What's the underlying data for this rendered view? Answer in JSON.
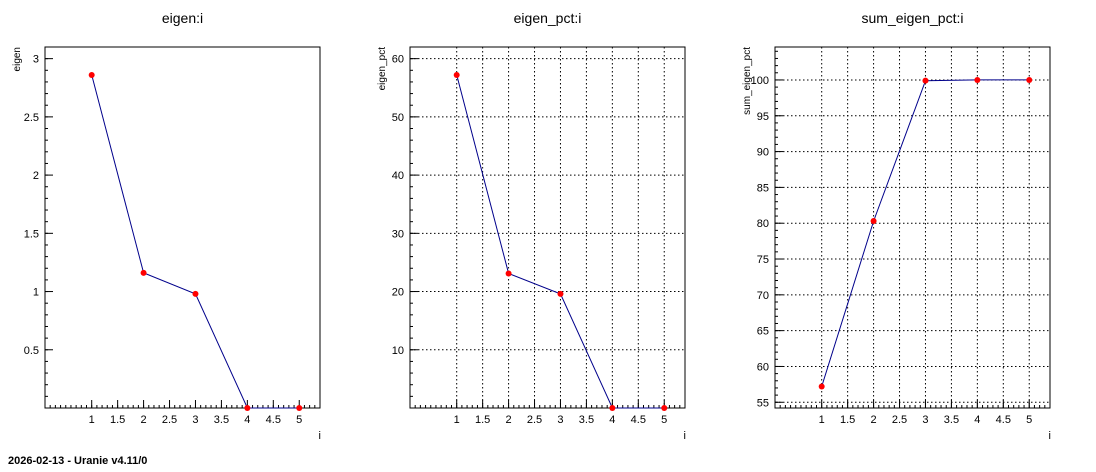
{
  "footer_text": "2026-02-13 - Uranie v4.11/0",
  "colors": {
    "line": "#00008b",
    "marker": "#ff0000",
    "grid": "#000000",
    "axis": "#000000"
  },
  "chart_data": [
    {
      "type": "line",
      "title": "eigen:i",
      "xlabel": "i",
      "ylabel": "eigen",
      "grid": false,
      "xlim": [
        0.1,
        5.4
      ],
      "ylim": [
        0.0,
        3.1
      ],
      "xticks": [
        1,
        1.5,
        2,
        2.5,
        3,
        3.5,
        4,
        4.5,
        5
      ],
      "xtick_labels": [
        "1",
        "1.5",
        "2",
        "2.5",
        "3",
        "3.5",
        "4",
        "4.5",
        "5"
      ],
      "yticks": [
        0.5,
        1,
        1.5,
        2,
        2.5,
        3
      ],
      "ytick_labels": [
        "0.5",
        "1",
        "1.5",
        "2",
        "2.5",
        "3"
      ],
      "x": [
        1,
        2,
        3,
        4,
        5
      ],
      "y": [
        2.86,
        1.16,
        0.98,
        0.0,
        0.0
      ]
    },
    {
      "type": "line",
      "title": "eigen_pct:i",
      "xlabel": "i",
      "ylabel": "eigen_pct",
      "grid": true,
      "xlim": [
        0.1,
        5.4
      ],
      "ylim": [
        0.0,
        62.0
      ],
      "xticks": [
        1,
        1.5,
        2,
        2.5,
        3,
        3.5,
        4,
        4.5,
        5
      ],
      "xtick_labels": [
        "1",
        "1.5",
        "2",
        "2.5",
        "3",
        "3.5",
        "4",
        "4.5",
        "5"
      ],
      "yticks": [
        10,
        20,
        30,
        40,
        50,
        60
      ],
      "ytick_labels": [
        "10",
        "20",
        "30",
        "40",
        "50",
        "60"
      ],
      "x": [
        1,
        2,
        3,
        4,
        5
      ],
      "y": [
        57.2,
        23.1,
        19.6,
        0.0,
        0.0
      ]
    },
    {
      "type": "line",
      "title": "sum_eigen_pct:i",
      "xlabel": "i",
      "ylabel": "sum_eigen_pct",
      "grid": true,
      "xlim": [
        0.1,
        5.4
      ],
      "ylim": [
        54.2,
        104.6
      ],
      "xticks": [
        1,
        1.5,
        2,
        2.5,
        3,
        3.5,
        4,
        4.5,
        5
      ],
      "xtick_labels": [
        "1",
        "1.5",
        "2",
        "2.5",
        "3",
        "3.5",
        "4",
        "4.5",
        "5"
      ],
      "yticks": [
        55,
        60,
        65,
        70,
        75,
        80,
        85,
        90,
        95,
        100
      ],
      "ytick_labels": [
        "55",
        "60",
        "65",
        "70",
        "75",
        "80",
        "85",
        "90",
        "95",
        "100"
      ],
      "x": [
        1,
        2,
        3,
        4,
        5
      ],
      "y": [
        57.2,
        80.3,
        99.9,
        100.0,
        100.0
      ]
    }
  ]
}
